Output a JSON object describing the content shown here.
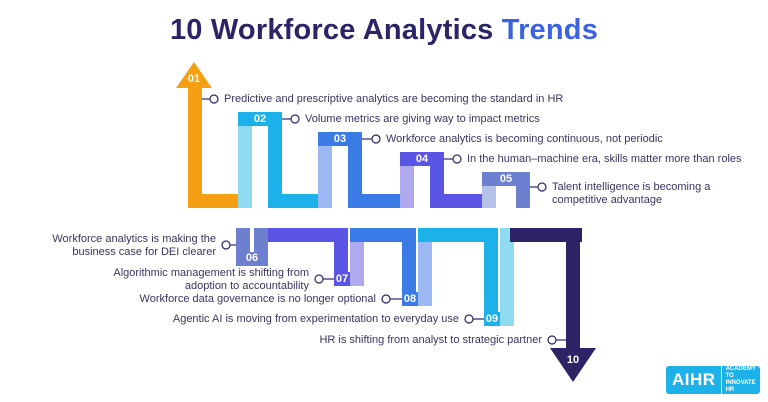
{
  "title": {
    "main": "10 Workforce Analytics",
    "accent": "Trends"
  },
  "trends": [
    {
      "num": "01",
      "text": "Predictive and prescriptive analytics are becoming the standard in HR"
    },
    {
      "num": "02",
      "text": "Volume metrics are giving way to impact metrics"
    },
    {
      "num": "03",
      "text": "Workforce analytics is becoming continuous, not periodic"
    },
    {
      "num": "04",
      "text": "In the human–machine era, skills matter more than roles"
    },
    {
      "num": "05",
      "text": "Talent intelligence is becoming a",
      "text2": "competitive advantage"
    },
    {
      "num": "06",
      "text": "Workforce analytics is making the",
      "text2": "business case for DEI clearer"
    },
    {
      "num": "07",
      "text": "Algorithmic management is shifting from",
      "text2": "adoption to accountability"
    },
    {
      "num": "08",
      "text": "Workforce data governance is no longer optional"
    },
    {
      "num": "09",
      "text": "Agentic AI is moving from experimentation to everyday use"
    },
    {
      "num": "10",
      "text": "HR is shifting from analyst to strategic partner"
    }
  ],
  "colors": {
    "orange": "#f5a012",
    "cyan": "#1cb1e8",
    "blue": "#3b7be6",
    "violet": "#5b55e6",
    "slate": "#6d7fcf",
    "navy": "#2c2466",
    "light_cyan": "#8fdcf2",
    "light_blue": "#9bb8f2",
    "light_violet": "#b0a9f0"
  },
  "logo": {
    "main": "AIHR",
    "tagline_1": "ACADEMY TO",
    "tagline_2": "INNOVATE HR"
  }
}
